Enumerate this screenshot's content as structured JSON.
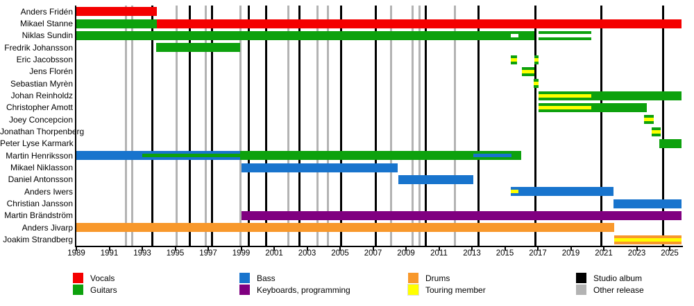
{
  "chart_data": {
    "type": "timeline",
    "description": "Band members timeline (gantt-style), roles by color, vertical lines mark releases",
    "x_axis": {
      "start": 1989,
      "end": 2025.72,
      "tick_years": [
        1989,
        1991,
        1993,
        1995,
        1997,
        1999,
        2001,
        2003,
        2005,
        2007,
        2009,
        2011,
        2013,
        2015,
        2017,
        2019,
        2021,
        2023,
        2025
      ]
    },
    "colors": {
      "vocals": "#F40000",
      "guitars": "#0DA10D",
      "bass": "#1874CD",
      "keyboards": "#800080",
      "drums": "#F8982B",
      "touring": "#FFFF00",
      "gap": "#FFFFFF",
      "studio_album": "#000000",
      "other_release": "#B3B3B3",
      "axis": "#000000"
    },
    "members": [
      {
        "name": "Anders Fridén",
        "bars": [
          {
            "role": "vocals",
            "start": 1989.0,
            "end": 1993.9
          }
        ]
      },
      {
        "name": "Mikael Stanne",
        "bars": [
          {
            "role": "guitars",
            "start": 1989.0,
            "end": 1993.9
          },
          {
            "role": "vocals",
            "start": 1993.9,
            "end": 2025.72
          }
        ]
      },
      {
        "name": "Niklas Sundin",
        "bars": [
          {
            "role": "guitars",
            "start": 1989.0,
            "end": 2016.8,
            "insets": [
              {
                "role": "gap",
                "start": 2015.35,
                "end": 2015.8
              }
            ]
          },
          {
            "role": "guitars",
            "start": 2017.05,
            "end": 2020.25,
            "insets": [
              {
                "role": "gap",
                "start": 2017.05,
                "end": 2020.25
              }
            ]
          }
        ]
      },
      {
        "name": "Fredrik Johansson",
        "bars": [
          {
            "role": "guitars",
            "start": 1993.85,
            "end": 1998.95
          }
        ]
      },
      {
        "name": "Eric Jacobsson",
        "bars": [
          {
            "role": "guitars",
            "start": 2015.35,
            "end": 2015.75,
            "insets": [
              {
                "role": "touring",
                "start": 2015.35,
                "end": 2015.75
              }
            ]
          },
          {
            "role": "guitars",
            "start": 2016.8,
            "end": 2017.05,
            "insets": [
              {
                "role": "touring",
                "start": 2016.8,
                "end": 2017.05
              }
            ]
          }
        ]
      },
      {
        "name": "Jens Florén",
        "bars": [
          {
            "role": "guitars",
            "start": 2016.05,
            "end": 2016.8,
            "insets": [
              {
                "role": "touring",
                "start": 2016.05,
                "end": 2016.8
              }
            ]
          }
        ]
      },
      {
        "name": "Sebastian Myrèn",
        "bars": [
          {
            "role": "guitars",
            "start": 2016.75,
            "end": 2017.05,
            "insets": [
              {
                "role": "touring",
                "start": 2016.75,
                "end": 2017.05
              }
            ]
          }
        ]
      },
      {
        "name": "Johan Reinholdz",
        "bars": [
          {
            "role": "guitars",
            "start": 2017.05,
            "end": 2025.72,
            "insets": [
              {
                "role": "touring",
                "start": 2017.05,
                "end": 2020.25
              }
            ]
          }
        ]
      },
      {
        "name": "Christopher Amott",
        "bars": [
          {
            "role": "guitars",
            "start": 2017.05,
            "end": 2023.6,
            "insets": [
              {
                "role": "touring",
                "start": 2017.05,
                "end": 2020.25
              }
            ]
          }
        ]
      },
      {
        "name": "Joey Concepcion",
        "bars": [
          {
            "role": "guitars",
            "start": 2023.45,
            "end": 2024.05,
            "insets": [
              {
                "role": "touring",
                "start": 2023.45,
                "end": 2024.05
              }
            ]
          }
        ]
      },
      {
        "name": "Jonathan Thorpenberg",
        "bars": [
          {
            "role": "guitars",
            "start": 2023.9,
            "end": 2024.45,
            "insets": [
              {
                "role": "touring",
                "start": 2023.9,
                "end": 2024.45
              }
            ]
          }
        ]
      },
      {
        "name": "Peter Lyse Karmark",
        "bars": [
          {
            "role": "guitars",
            "start": 2024.35,
            "end": 2025.72
          }
        ]
      },
      {
        "name": "Martin Henriksson",
        "bars": [
          {
            "role": "bass",
            "start": 1989.0,
            "end": 1998.95,
            "insets": [
              {
                "role": "guitars",
                "start": 1993.0,
                "end": 1998.95
              }
            ]
          },
          {
            "role": "guitars",
            "start": 1998.95,
            "end": 2016.0,
            "insets": [
              {
                "role": "bass",
                "start": 2013.1,
                "end": 2015.4
              }
            ]
          }
        ]
      },
      {
        "name": "Mikael Niklasson",
        "bars": [
          {
            "role": "bass",
            "start": 1999.0,
            "end": 2008.5
          }
        ]
      },
      {
        "name": "Daniel Antonsson",
        "bars": [
          {
            "role": "bass",
            "start": 2008.55,
            "end": 2013.1
          }
        ]
      },
      {
        "name": "Anders Iwers",
        "bars": [
          {
            "role": "bass",
            "start": 2015.35,
            "end": 2021.6,
            "insets": [
              {
                "role": "touring",
                "start": 2015.35,
                "end": 2015.8
              }
            ]
          }
        ]
      },
      {
        "name": "Christian Jansson",
        "bars": [
          {
            "role": "bass",
            "start": 2021.6,
            "end": 2025.72
          }
        ]
      },
      {
        "name": "Martin Brändström",
        "bars": [
          {
            "role": "keyboards",
            "start": 1999.0,
            "end": 2025.72
          }
        ]
      },
      {
        "name": "Anders Jivarp",
        "bars": [
          {
            "role": "drums",
            "start": 1989.0,
            "end": 2021.65
          }
        ]
      },
      {
        "name": "Joakim Strandberg",
        "bars": [
          {
            "role": "drums",
            "start": 2021.65,
            "end": 2025.72,
            "insets": [
              {
                "role": "touring",
                "start": 2021.65,
                "end": 2025.72
              }
            ]
          }
        ]
      }
    ],
    "releases": {
      "studio_albums": [
        1993.6,
        1995.9,
        1997.25,
        1999.45,
        2000.5,
        2002.55,
        2005.05,
        2007.15,
        2010.2,
        2013.4,
        2016.85,
        2020.85,
        2024.6
      ],
      "other_releases": [
        1992.0,
        1992.4,
        1995.1,
        1996.85,
        1998.95,
        2001.85,
        2003.65,
        2004.25,
        2008.1,
        2009.4,
        2009.8,
        2011.95
      ]
    },
    "legend": {
      "position": "bottom",
      "columns": [
        {
          "items": [
            {
              "label": "Vocals",
              "color_key": "vocals"
            },
            {
              "label": "Guitars",
              "color_key": "guitars"
            }
          ]
        },
        {
          "items": [
            {
              "label": "Bass",
              "color_key": "bass"
            },
            {
              "label": "Keyboards, programming",
              "color_key": "keyboards"
            }
          ]
        },
        {
          "items": [
            {
              "label": "Drums",
              "color_key": "drums"
            },
            {
              "label": "Touring member",
              "color_key": "touring"
            }
          ]
        },
        {
          "items": [
            {
              "label": "Studio album",
              "color_key": "studio_album"
            },
            {
              "label": "Other release",
              "color_key": "other_release"
            }
          ]
        }
      ]
    }
  }
}
